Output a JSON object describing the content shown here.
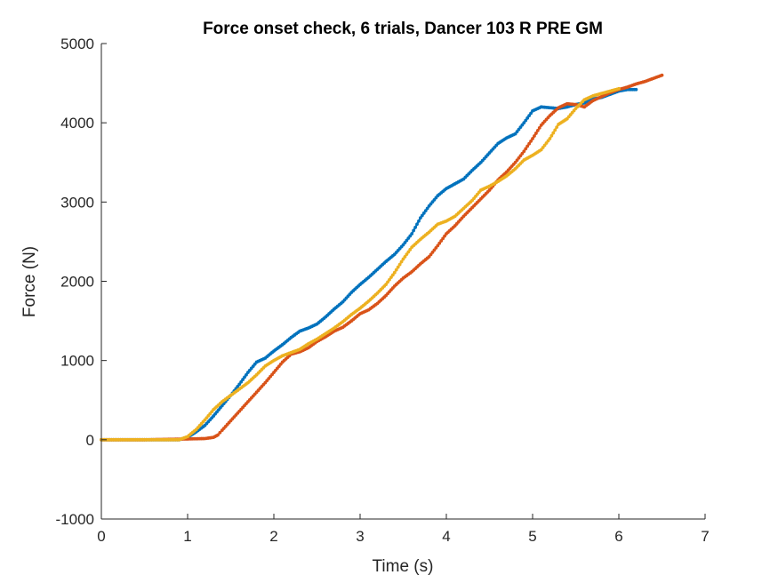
{
  "chart_data": {
    "type": "scatter",
    "title": "Force onset check, 6 trials, Dancer 103 R PRE GM",
    "xlabel": "Time (s)",
    "ylabel": "Force (N)",
    "xlim": [
      0,
      7
    ],
    "ylim": [
      -1000,
      5000
    ],
    "xticks": [
      0,
      1,
      2,
      3,
      4,
      5,
      6,
      7
    ],
    "yticks": [
      -1000,
      0,
      1000,
      2000,
      3000,
      4000,
      5000
    ],
    "xtick_labels": [
      "0",
      "1",
      "2",
      "3",
      "4",
      "5",
      "6",
      "7"
    ],
    "ytick_labels": [
      "-1000",
      "0",
      "1000",
      "2000",
      "3000",
      "4000",
      "5000"
    ],
    "grid": false,
    "legend": "none",
    "series": [
      {
        "color": "#0072BD",
        "x": [
          0,
          0.5,
          0.9,
          1.0,
          1.1,
          1.2,
          1.3,
          1.4,
          1.5,
          1.6,
          1.7,
          1.8,
          1.9,
          2.0,
          2.1,
          2.2,
          2.3,
          2.4,
          2.5,
          2.6,
          2.7,
          2.8,
          2.9,
          3.0,
          3.1,
          3.2,
          3.3,
          3.4,
          3.5,
          3.6,
          3.7,
          3.8,
          3.9,
          4.0,
          4.1,
          4.2,
          4.3,
          4.4,
          4.5,
          4.6,
          4.7,
          4.8,
          4.9,
          5.0,
          5.1,
          5.2,
          5.3,
          5.4,
          5.5,
          5.6,
          5.7,
          5.8,
          5.9,
          6.0,
          6.1,
          6.2
        ],
        "y": [
          0,
          0,
          0,
          30,
          100,
          180,
          300,
          430,
          560,
          700,
          850,
          980,
          1030,
          1120,
          1200,
          1290,
          1370,
          1410,
          1460,
          1550,
          1650,
          1740,
          1860,
          1960,
          2050,
          2150,
          2250,
          2340,
          2460,
          2600,
          2800,
          2950,
          3080,
          3170,
          3230,
          3290,
          3400,
          3500,
          3620,
          3740,
          3810,
          3860,
          4000,
          4150,
          4200,
          4190,
          4180,
          4200,
          4230,
          4250,
          4300,
          4320,
          4360,
          4400,
          4420,
          4420
        ]
      },
      {
        "color": "#D95319",
        "x": [
          0,
          0.5,
          1.0,
          1.2,
          1.3,
          1.35,
          1.4,
          1.5,
          1.6,
          1.7,
          1.8,
          1.9,
          2.0,
          2.1,
          2.2,
          2.3,
          2.4,
          2.5,
          2.6,
          2.7,
          2.8,
          2.9,
          3.0,
          3.1,
          3.2,
          3.3,
          3.4,
          3.5,
          3.6,
          3.7,
          3.8,
          3.9,
          4.0,
          4.1,
          4.2,
          4.3,
          4.4,
          4.5,
          4.6,
          4.7,
          4.8,
          4.9,
          5.0,
          5.1,
          5.2,
          5.3,
          5.4,
          5.5,
          5.6,
          5.7,
          5.8,
          5.9,
          6.0,
          6.1,
          6.2,
          6.3,
          6.4,
          6.5
        ],
        "y": [
          0,
          0,
          10,
          15,
          30,
          60,
          120,
          240,
          360,
          480,
          600,
          720,
          850,
          980,
          1080,
          1110,
          1160,
          1240,
          1300,
          1370,
          1420,
          1500,
          1590,
          1640,
          1720,
          1820,
          1940,
          2040,
          2120,
          2220,
          2310,
          2450,
          2600,
          2700,
          2820,
          2930,
          3040,
          3150,
          3280,
          3380,
          3500,
          3640,
          3800,
          3970,
          4090,
          4190,
          4240,
          4230,
          4200,
          4280,
          4330,
          4380,
          4420,
          4450,
          4490,
          4520,
          4560,
          4600
        ]
      },
      {
        "color": "#EDB120",
        "x": [
          0,
          0.5,
          0.9,
          1.0,
          1.1,
          1.2,
          1.3,
          1.4,
          1.5,
          1.6,
          1.7,
          1.8,
          1.9,
          2.0,
          2.1,
          2.2,
          2.3,
          2.4,
          2.5,
          2.6,
          2.7,
          2.8,
          2.9,
          3.0,
          3.1,
          3.2,
          3.3,
          3.4,
          3.5,
          3.6,
          3.7,
          3.8,
          3.9,
          4.0,
          4.1,
          4.2,
          4.3,
          4.4,
          4.5,
          4.6,
          4.7,
          4.8,
          4.9,
          5.0,
          5.1,
          5.2,
          5.3,
          5.4,
          5.5,
          5.6,
          5.7,
          5.8,
          5.9,
          6.0
        ],
        "y": [
          0,
          0,
          0,
          40,
          130,
          250,
          380,
          480,
          560,
          640,
          720,
          820,
          930,
          1000,
          1060,
          1100,
          1140,
          1210,
          1270,
          1340,
          1410,
          1490,
          1580,
          1660,
          1750,
          1850,
          1960,
          2110,
          2280,
          2430,
          2530,
          2620,
          2720,
          2760,
          2820,
          2920,
          3020,
          3150,
          3200,
          3260,
          3330,
          3420,
          3530,
          3590,
          3660,
          3800,
          3980,
          4050,
          4180,
          4290,
          4340,
          4370,
          4400,
          4430
        ]
      }
    ]
  }
}
